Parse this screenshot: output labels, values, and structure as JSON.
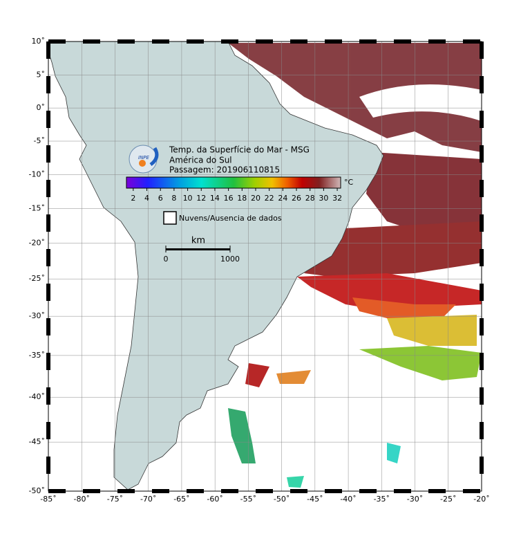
{
  "chart_data": {
    "type": "map",
    "title": "Temp. da Superfície do Mar - MSG",
    "subtitle": "América do Sul",
    "pass": "Passagem: 201906110815",
    "xlim": [
      -85,
      -20
    ],
    "ylim": [
      -50,
      10
    ],
    "xticks": [
      {
        "value": -85,
        "label": "-85˚"
      },
      {
        "value": -80,
        "label": "-80˚"
      },
      {
        "value": -75,
        "label": "-75˚"
      },
      {
        "value": -70,
        "label": "-70˚"
      },
      {
        "value": -65,
        "label": "-65˚"
      },
      {
        "value": -60,
        "label": "-60˚"
      },
      {
        "value": -55,
        "label": "-55˚"
      },
      {
        "value": -50,
        "label": "-50˚"
      },
      {
        "value": -45,
        "label": "-45˚"
      },
      {
        "value": -40,
        "label": "-40˚"
      },
      {
        "value": -35,
        "label": "-35˚"
      },
      {
        "value": -30,
        "label": "-30˚"
      },
      {
        "value": -25,
        "label": "-25˚"
      },
      {
        "value": -20,
        "label": "-20˚"
      }
    ],
    "yticks": [
      {
        "value": 10,
        "label": "10˚"
      },
      {
        "value": 5,
        "label": "5˚"
      },
      {
        "value": 0,
        "label": "0˚"
      },
      {
        "value": -5,
        "label": "-5˚"
      },
      {
        "value": -10,
        "label": "-10˚"
      },
      {
        "value": -15,
        "label": "-15˚"
      },
      {
        "value": -20,
        "label": "-20˚"
      },
      {
        "value": -25,
        "label": "-25˚"
      },
      {
        "value": -30,
        "label": "-30˚"
      },
      {
        "value": -35,
        "label": "-35˚"
      },
      {
        "value": -40,
        "label": "-40˚"
      },
      {
        "value": -45,
        "label": "-45˚"
      },
      {
        "value": -50,
        "label": "-50˚"
      }
    ],
    "colorbar": {
      "unit": "°C",
      "clim": [
        1,
        32.5
      ],
      "ticks": [
        2,
        4,
        6,
        8,
        10,
        12,
        14,
        16,
        18,
        20,
        22,
        24,
        26,
        28,
        30,
        32
      ]
    },
    "legend": "Nuvens/Ausencia de dados",
    "scale": {
      "unit": "km",
      "ticks": [
        0,
        1000
      ]
    },
    "logo": "INPE",
    "grid": true
  }
}
